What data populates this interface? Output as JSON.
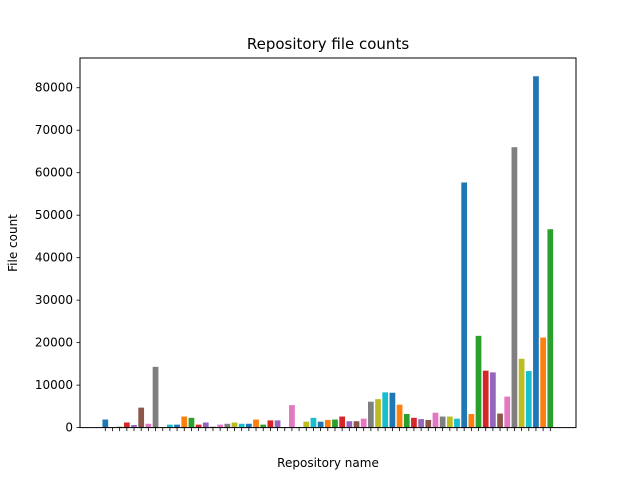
{
  "chart_data": {
    "type": "bar",
    "title": "Repository file counts",
    "xlabel": "Repository name",
    "ylabel": "File count",
    "ylim": [
      0,
      87000
    ],
    "yticks": [
      0,
      10000,
      20000,
      30000,
      40000,
      50000,
      60000,
      70000,
      80000
    ],
    "grid": false,
    "legend": "none",
    "palette": [
      "#1f77b4",
      "#ff7f0e",
      "#2ca02c",
      "#d62728",
      "#9467bd",
      "#8c564b",
      "#e377c2",
      "#7f7f7f",
      "#bcbd22",
      "#17becf"
    ],
    "values": [
      1900,
      100,
      200,
      1200,
      600,
      4700,
      900,
      14300,
      100,
      700,
      700,
      2600,
      2300,
      700,
      1200,
      200,
      700,
      900,
      1200,
      900,
      900,
      1900,
      700,
      1700,
      1700,
      100,
      5300,
      100,
      1400,
      2300,
      1400,
      1800,
      1900,
      2600,
      1500,
      1500,
      2100,
      6100,
      6700,
      8300,
      8200,
      5400,
      3200,
      2300,
      2000,
      1800,
      3500,
      2600,
      2600,
      2100,
      57700,
      3200,
      21600,
      13400,
      13000,
      3300,
      7300,
      66000,
      16200,
      13300,
      82700,
      21200,
      46700
    ]
  }
}
